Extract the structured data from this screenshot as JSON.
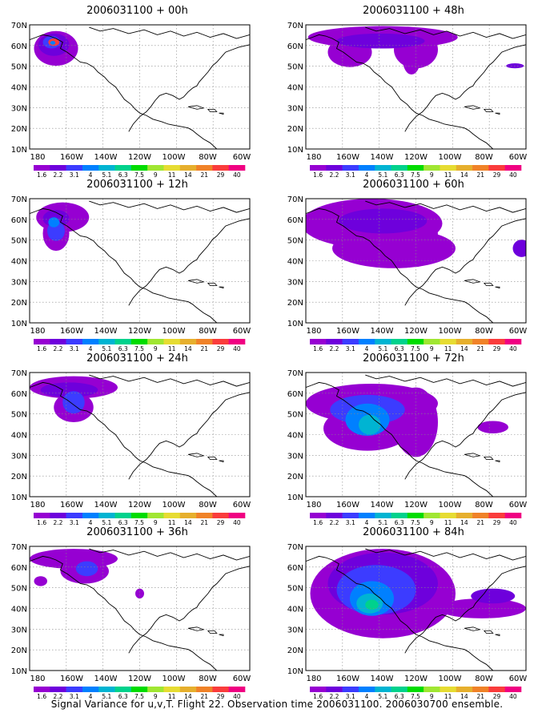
{
  "figure": {
    "caption": "Signal Variance for u,v,T. Flight 22. Observation time 2006031100. 2006030700 ensemble.",
    "lat_labels": [
      "70N",
      "60N",
      "50N",
      "40N",
      "30N",
      "20N",
      "10N"
    ],
    "lon_labels": [
      "180",
      "160W",
      "140W",
      "120W",
      "100W",
      "80W",
      "60W"
    ],
    "colorbar": {
      "labels": [
        "1.6",
        "2.2",
        "3.1",
        "4",
        "5.1",
        "6.3",
        "7.5",
        "9",
        "11",
        "14",
        "21",
        "29",
        "40"
      ],
      "colors": [
        "#9600d2",
        "#6e00dc",
        "#3c3cff",
        "#0080ff",
        "#00b4d2",
        "#00d28c",
        "#00dc00",
        "#a0e632",
        "#e6dc32",
        "#e6af2d",
        "#f08228",
        "#fa3c3c",
        "#f00082"
      ]
    },
    "panels": [
      {
        "id": "00h",
        "title": "2006031100 + 00h"
      },
      {
        "id": "48h",
        "title": "2006031100 + 48h"
      },
      {
        "id": "12h",
        "title": "2006031100 + 12h"
      },
      {
        "id": "60h",
        "title": "2006031100 + 60h"
      },
      {
        "id": "24h",
        "title": "2006031100 + 24h"
      },
      {
        "id": "72h",
        "title": "2006031100 + 72h"
      },
      {
        "id": "36h",
        "title": "2006031100 + 36h"
      },
      {
        "id": "84h",
        "title": "2006031100 + 84h"
      }
    ]
  }
}
